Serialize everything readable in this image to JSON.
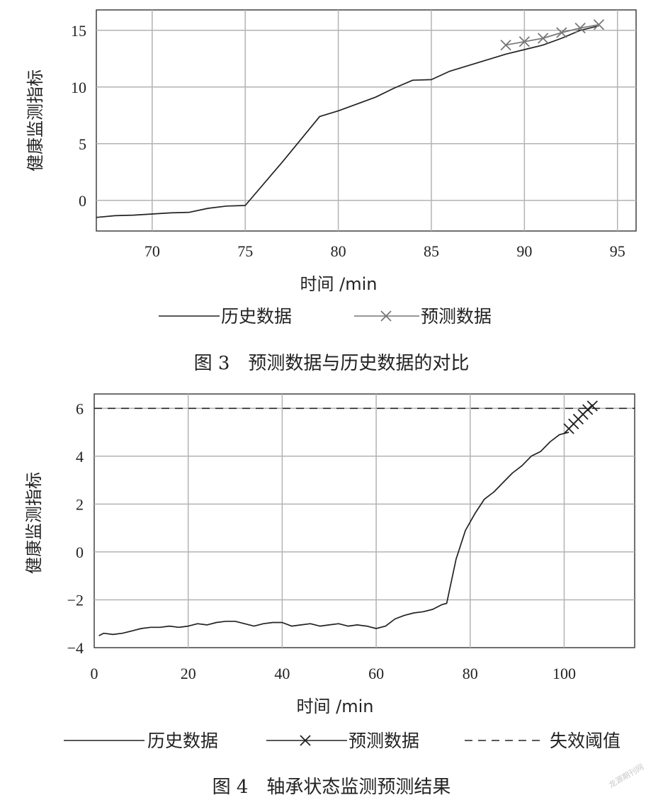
{
  "watermark": "龙源期刊网",
  "chart_data": [
    {
      "type": "line",
      "caption": "图 3　预测数据与历史数据的对比",
      "xlabel": "时间 /min",
      "ylabel": "健康监测指标",
      "xlim": [
        67,
        96
      ],
      "ylim": [
        -2.7,
        16.8
      ],
      "xticks": [
        70,
        75,
        80,
        85,
        90,
        95
      ],
      "yticks": [
        0,
        5,
        10,
        15
      ],
      "grid": true,
      "legend_position": "bottom",
      "series": [
        {
          "name": "历史数据",
          "marker": "none",
          "color": "#222222",
          "x": [
            67,
            68,
            69,
            70,
            71,
            72,
            73,
            74,
            75,
            77,
            79,
            80,
            81,
            82,
            83,
            84,
            85,
            86,
            87,
            88,
            89,
            90,
            91,
            92,
            93,
            94
          ],
          "y": [
            -1.5,
            -1.35,
            -1.3,
            -1.2,
            -1.1,
            -1.05,
            -0.7,
            -0.5,
            -0.45,
            3.4,
            7.4,
            7.9,
            8.5,
            9.1,
            9.9,
            10.6,
            10.65,
            11.4,
            11.9,
            12.4,
            12.9,
            13.3,
            13.7,
            14.3,
            15.0,
            15.4
          ]
        },
        {
          "name": "预测数据",
          "marker": "x",
          "color": "#777777",
          "x": [
            89,
            90,
            91,
            92,
            93,
            94
          ],
          "y": [
            13.7,
            14.0,
            14.3,
            14.8,
            15.2,
            15.5
          ]
        }
      ]
    },
    {
      "type": "line",
      "caption": "图 4　轴承状态监测预测结果",
      "xlabel": "时间 /min",
      "ylabel": "健康监测指标",
      "xlim": [
        0,
        115
      ],
      "ylim": [
        -4,
        6.6
      ],
      "xticks": [
        0,
        20,
        40,
        60,
        80,
        100
      ],
      "yticks": [
        -4,
        -2,
        0,
        2,
        4,
        6
      ],
      "grid": true,
      "legend_position": "bottom",
      "series": [
        {
          "name": "历史数据",
          "marker": "none",
          "color": "#222222",
          "x": [
            1,
            2,
            4,
            6,
            8,
            10,
            12,
            14,
            16,
            18,
            20,
            22,
            24,
            26,
            28,
            30,
            32,
            34,
            36,
            38,
            40,
            42,
            44,
            46,
            48,
            50,
            52,
            54,
            56,
            58,
            60,
            62,
            64,
            66,
            68,
            70,
            72,
            74,
            75,
            77,
            79,
            81,
            83,
            85,
            87,
            89,
            91,
            93,
            95,
            97,
            99,
            101
          ],
          "y": [
            -3.5,
            -3.4,
            -3.45,
            -3.4,
            -3.3,
            -3.2,
            -3.15,
            -3.15,
            -3.1,
            -3.15,
            -3.1,
            -3.0,
            -3.05,
            -2.95,
            -2.9,
            -2.9,
            -3.0,
            -3.1,
            -3.0,
            -2.95,
            -2.95,
            -3.1,
            -3.05,
            -3.0,
            -3.1,
            -3.05,
            -3.0,
            -3.1,
            -3.05,
            -3.1,
            -3.2,
            -3.1,
            -2.8,
            -2.65,
            -2.55,
            -2.5,
            -2.4,
            -2.2,
            -2.15,
            -0.3,
            0.9,
            1.6,
            2.2,
            2.5,
            2.9,
            3.3,
            3.6,
            4.0,
            4.2,
            4.6,
            4.9,
            5.0
          ]
        },
        {
          "name": "预测数据",
          "marker": "x",
          "color": "#222222",
          "x": [
            101,
            102,
            103,
            104,
            105,
            106
          ],
          "y": [
            5.15,
            5.35,
            5.55,
            5.75,
            5.95,
            6.1
          ]
        },
        {
          "name": "失效阈值",
          "marker": "none",
          "dash": "dashed",
          "color": "#222222",
          "x": [
            0,
            115
          ],
          "y": [
            6,
            6
          ]
        }
      ]
    }
  ]
}
